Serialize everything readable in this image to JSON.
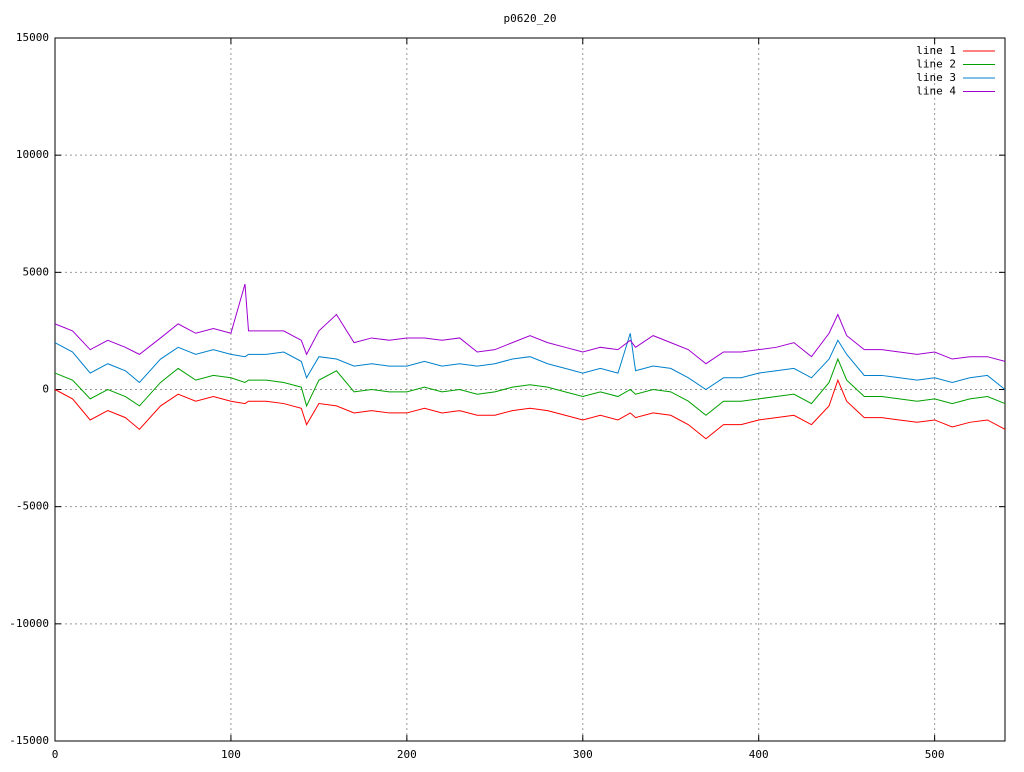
{
  "chart_data": {
    "type": "line",
    "title": "p0620_20",
    "x": [
      0,
      10,
      20,
      30,
      40,
      48,
      60,
      70,
      80,
      90,
      100,
      108,
      110,
      120,
      130,
      140,
      143,
      150,
      160,
      170,
      180,
      190,
      200,
      210,
      220,
      230,
      240,
      250,
      260,
      270,
      280,
      290,
      300,
      310,
      320,
      327,
      330,
      340,
      350,
      360,
      370,
      380,
      390,
      400,
      410,
      420,
      430,
      440,
      445,
      450,
      460,
      470,
      480,
      490,
      500,
      510,
      520,
      530,
      540
    ],
    "series": [
      {
        "name": "line 1",
        "color": "#ff0000",
        "values": [
          0,
          -400,
          -1300,
          -900,
          -1200,
          -1700,
          -700,
          -200,
          -500,
          -300,
          -500,
          -600,
          -500,
          -500,
          -600,
          -800,
          -1500,
          -600,
          -700,
          -1000,
          -900,
          -1000,
          -1000,
          -800,
          -1000,
          -900,
          -1100,
          -1100,
          -900,
          -800,
          -900,
          -1100,
          -1300,
          -1100,
          -1300,
          -1000,
          -1200,
          -1000,
          -1100,
          -1500,
          -2100,
          -1500,
          -1500,
          -1300,
          -1200,
          -1100,
          -1500,
          -700,
          400,
          -500,
          -1200,
          -1200,
          -1300,
          -1400,
          -1300,
          -1600,
          -1400,
          -1300,
          -1700
        ]
      },
      {
        "name": "line 2",
        "color": "#00a000",
        "values": [
          700,
          400,
          -400,
          0,
          -300,
          -700,
          300,
          900,
          400,
          600,
          500,
          300,
          400,
          400,
          300,
          100,
          -700,
          400,
          800,
          -100,
          0,
          -100,
          -100,
          100,
          -100,
          0,
          -200,
          -100,
          100,
          200,
          100,
          -100,
          -300,
          -100,
          -300,
          0,
          -200,
          0,
          -100,
          -500,
          -1100,
          -500,
          -500,
          -400,
          -300,
          -200,
          -600,
          300,
          1300,
          400,
          -300,
          -300,
          -400,
          -500,
          -400,
          -600,
          -400,
          -300,
          -600
        ]
      },
      {
        "name": "line 3",
        "color": "#0080cc",
        "values": [
          2000,
          1600,
          700,
          1100,
          800,
          300,
          1300,
          1800,
          1500,
          1700,
          1500,
          1400,
          1500,
          1500,
          1600,
          1200,
          500,
          1400,
          1300,
          1000,
          1100,
          1000,
          1000,
          1200,
          1000,
          1100,
          1000,
          1100,
          1300,
          1400,
          1100,
          900,
          700,
          900,
          700,
          2400,
          800,
          1000,
          900,
          500,
          0,
          500,
          500,
          700,
          800,
          900,
          500,
          1300,
          2100,
          1500,
          600,
          600,
          500,
          400,
          500,
          300,
          500,
          600,
          0
        ]
      },
      {
        "name": "line 4",
        "color": "#a000d0",
        "values": [
          2800,
          2500,
          1700,
          2100,
          1800,
          1500,
          2200,
          2800,
          2400,
          2600,
          2400,
          4500,
          2500,
          2500,
          2500,
          2100,
          1500,
          2500,
          3200,
          2000,
          2200,
          2100,
          2200,
          2200,
          2100,
          2200,
          1600,
          1700,
          2000,
          2300,
          2000,
          1800,
          1600,
          1800,
          1700,
          2100,
          1800,
          2300,
          2000,
          1700,
          1100,
          1600,
          1600,
          1700,
          1800,
          2000,
          1400,
          2400,
          3200,
          2300,
          1700,
          1700,
          1600,
          1500,
          1600,
          1300,
          1400,
          1400,
          1200
        ]
      }
    ],
    "xlim": [
      0,
      540
    ],
    "xticks": [
      0,
      100,
      200,
      300,
      400,
      500
    ],
    "ylim": [
      -15000,
      15000
    ],
    "yticks": [
      -15000,
      -10000,
      -5000,
      0,
      5000,
      10000,
      15000
    ],
    "grid": true,
    "legend": "top-right"
  }
}
